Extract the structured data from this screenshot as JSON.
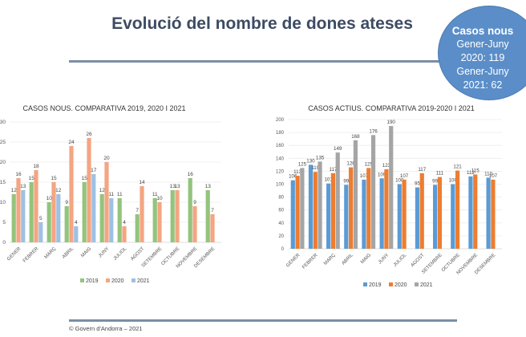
{
  "page": {
    "title": "Evolució del nombre de dones ateses",
    "footer": "© Govern d'Andorra – 2021"
  },
  "summary_bubble": {
    "heading": "Casos nous",
    "line1": "Gener-Juny",
    "line2": "2020: 119",
    "line3": "Gener-Juny",
    "line4": "2021:  62",
    "color": "#5b8ec8"
  },
  "chart_data": [
    {
      "type": "bar",
      "title": "CASOS NOUS. COMPARATIVA 2019, 2020 I 2021",
      "xlabel": "",
      "ylabel": "",
      "ylim": [
        0,
        30
      ],
      "yticks": [
        0,
        5,
        10,
        15,
        20,
        25,
        30
      ],
      "grid": true,
      "legend": "bottom",
      "categories": [
        "GENER",
        "FEBRER",
        "MARÇ",
        "ABRIL",
        "MAIG",
        "JUNY",
        "JULIOL",
        "AGOST",
        "SETEMBRE",
        "OCTUBRE",
        "NOVEMBRE",
        "DESEMBRE"
      ],
      "series": [
        {
          "name": "2019",
          "color": "#93c47d",
          "values": [
            12,
            15,
            10,
            9,
            15,
            12,
            11,
            7,
            11,
            13,
            16,
            13
          ]
        },
        {
          "name": "2020",
          "color": "#f4a582",
          "values": [
            16,
            18,
            15,
            24,
            26,
            20,
            4,
            14,
            10,
            13,
            9,
            7
          ]
        },
        {
          "name": "2021",
          "color": "#9fc0e3",
          "values": [
            13,
            5,
            12,
            4,
            17,
            11,
            null,
            null,
            null,
            null,
            null,
            null
          ]
        }
      ]
    },
    {
      "type": "bar",
      "title": "CASOS ACTIUS. COMPARATIVA 2019-2020 I 2021",
      "xlabel": "",
      "ylabel": "",
      "ylim": [
        0,
        200
      ],
      "yticks": [
        0,
        20,
        40,
        60,
        80,
        100,
        120,
        140,
        160,
        180,
        200
      ],
      "grid": true,
      "legend": "bottom",
      "categories": [
        "GENER",
        "FEBRER",
        "MARÇ",
        "ABRIL",
        "MAIG",
        "JUNY",
        "JULIOL",
        "AGOST",
        "SETEMBRE",
        "OCTUBRE",
        "NOVEMBRE",
        "DESEMBRE"
      ],
      "series": [
        {
          "name": "2019",
          "color": "#5b9bd5",
          "values": [
            106,
            130,
            101,
            99,
            107,
            109,
            100,
            95,
            99,
            100,
            112,
            110
          ]
        },
        {
          "name": "2020",
          "color": "#ed7d31",
          "values": [
            113,
            119,
            117,
            126,
            125,
            123,
            107,
            117,
            111,
            121,
            115,
            107
          ]
        },
        {
          "name": "2021",
          "color": "#a5a5a5",
          "values": [
            125,
            135,
            149,
            168,
            176,
            190,
            null,
            null,
            null,
            null,
            null,
            null
          ]
        }
      ]
    }
  ]
}
